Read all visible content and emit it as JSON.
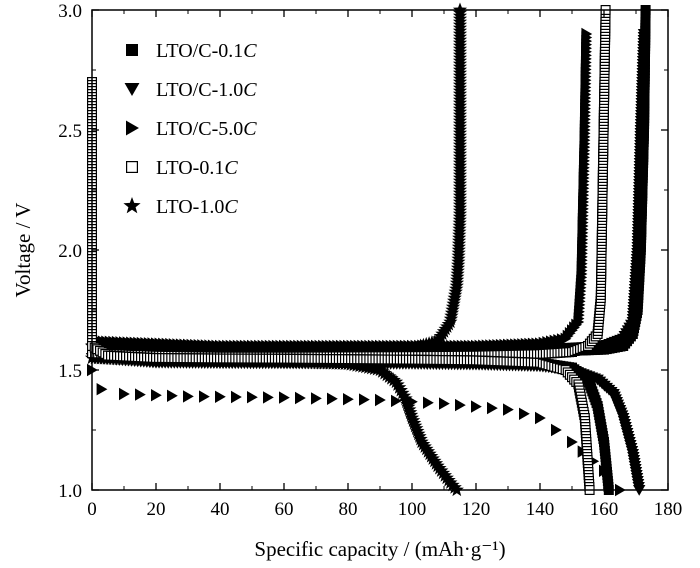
{
  "chart_data": {
    "type": "scatter",
    "title": "",
    "xlabel": "Specific capacity /  (mAh·g⁻¹)",
    "ylabel": "Voltage / V",
    "xlim": [
      0,
      180
    ],
    "ylim": [
      1.0,
      3.0
    ],
    "x_ticks": [
      "0",
      "20",
      "40",
      "60",
      "80",
      "100",
      "120",
      "140",
      "160",
      "180"
    ],
    "y_ticks": [
      "1.0",
      "1.5",
      "2.0",
      "2.5",
      "3.0"
    ],
    "grid": false,
    "legend_position": "top-left",
    "series": [
      {
        "name": "LTO/C-0.1C",
        "name_main": "LTO/C-0.1",
        "name_suffix": "C",
        "marker": "square-filled",
        "charge": [
          [
            0,
            1.58
          ],
          [
            20,
            1.57
          ],
          [
            40,
            1.565
          ],
          [
            60,
            1.566
          ],
          [
            80,
            1.567
          ],
          [
            100,
            1.568
          ],
          [
            120,
            1.57
          ],
          [
            140,
            1.575
          ],
          [
            160,
            1.585
          ],
          [
            166,
            1.6
          ],
          [
            169,
            1.65
          ],
          [
            170.5,
            1.75
          ],
          [
            171.5,
            2.0
          ],
          [
            172.5,
            2.5
          ],
          [
            173,
            3.0
          ]
        ],
        "discharge": [
          [
            0,
            1.62
          ],
          [
            20,
            1.545
          ],
          [
            40,
            1.54
          ],
          [
            60,
            1.539
          ],
          [
            80,
            1.538
          ],
          [
            100,
            1.537
          ],
          [
            120,
            1.536
          ],
          [
            140,
            1.53
          ],
          [
            150,
            1.51
          ],
          [
            155,
            1.46
          ],
          [
            158,
            1.35
          ],
          [
            160,
            1.2
          ],
          [
            161.5,
            1.0
          ]
        ]
      },
      {
        "name": "LTO/C-1.0C",
        "name_main": "LTO/C-1.0",
        "name_suffix": "C",
        "marker": "triangle-down",
        "charge": [
          [
            0,
            1.59
          ],
          [
            20,
            1.58
          ],
          [
            40,
            1.575
          ],
          [
            60,
            1.575
          ],
          [
            80,
            1.576
          ],
          [
            100,
            1.578
          ],
          [
            120,
            1.58
          ],
          [
            140,
            1.585
          ],
          [
            160,
            1.6
          ],
          [
            166,
            1.63
          ],
          [
            169,
            1.7
          ],
          [
            170.5,
            2.0
          ],
          [
            171.5,
            2.5
          ],
          [
            172.5,
            2.9
          ]
        ],
        "discharge": [
          [
            0,
            1.55
          ],
          [
            20,
            1.53
          ],
          [
            40,
            1.528
          ],
          [
            60,
            1.527
          ],
          [
            80,
            1.526
          ],
          [
            100,
            1.525
          ],
          [
            120,
            1.522
          ],
          [
            140,
            1.515
          ],
          [
            150,
            1.5
          ],
          [
            158,
            1.46
          ],
          [
            163,
            1.4
          ],
          [
            166,
            1.3
          ],
          [
            169,
            1.15
          ],
          [
            171,
            1.0
          ]
        ]
      },
      {
        "name": "LTO/C-5.0C",
        "name_main": "LTO/C-5.0",
        "name_suffix": "C",
        "marker": "triangle-right",
        "charge": [
          [
            0,
            1.62
          ],
          [
            20,
            1.61
          ],
          [
            40,
            1.6
          ],
          [
            60,
            1.6
          ],
          [
            80,
            1.6
          ],
          [
            100,
            1.6
          ],
          [
            120,
            1.6
          ],
          [
            140,
            1.61
          ],
          [
            148,
            1.63
          ],
          [
            152,
            1.7
          ],
          [
            153,
            1.9
          ],
          [
            153.5,
            2.2
          ],
          [
            154,
            2.5
          ],
          [
            154.5,
            2.9
          ]
        ],
        "discharge": [
          [
            0,
            1.5
          ],
          [
            3,
            1.42
          ],
          [
            10,
            1.4
          ],
          [
            30,
            1.39
          ],
          [
            60,
            1.385
          ],
          [
            90,
            1.375
          ],
          [
            110,
            1.36
          ],
          [
            130,
            1.335
          ],
          [
            140,
            1.3
          ],
          [
            150,
            1.2
          ],
          [
            160,
            1.08
          ],
          [
            165,
            1.0
          ]
        ]
      },
      {
        "name": "LTO-0.1C",
        "name_main": "LTO-0.1",
        "name_suffix": "C",
        "marker": "square-open",
        "charge": [
          [
            0,
            1.57
          ],
          [
            20,
            1.56
          ],
          [
            40,
            1.556
          ],
          [
            60,
            1.556
          ],
          [
            80,
            1.557
          ],
          [
            100,
            1.558
          ],
          [
            120,
            1.56
          ],
          [
            140,
            1.566
          ],
          [
            150,
            1.575
          ],
          [
            155,
            1.6
          ],
          [
            158,
            1.65
          ],
          [
            159,
            1.8
          ],
          [
            159.5,
            2.2
          ],
          [
            160,
            2.6
          ],
          [
            160.5,
            3.0
          ]
        ],
        "discharge": [
          [
            0,
            2.7
          ],
          [
            0,
            2.2
          ],
          [
            0,
            1.8
          ],
          [
            0,
            1.6
          ],
          [
            5,
            1.56
          ],
          [
            20,
            1.55
          ],
          [
            40,
            1.548
          ],
          [
            60,
            1.547
          ],
          [
            80,
            1.545
          ],
          [
            100,
            1.543
          ],
          [
            120,
            1.54
          ],
          [
            140,
            1.53
          ],
          [
            148,
            1.5
          ],
          [
            152,
            1.44
          ],
          [
            154,
            1.3
          ],
          [
            155,
            1.1
          ],
          [
            155.5,
            1.0
          ]
        ]
      },
      {
        "name": "LTO-1.0C",
        "name_main": "LTO-1.0",
        "name_suffix": "C",
        "marker": "star",
        "charge": [
          [
            0,
            1.6
          ],
          [
            20,
            1.59
          ],
          [
            40,
            1.585
          ],
          [
            60,
            1.585
          ],
          [
            80,
            1.586
          ],
          [
            100,
            1.59
          ],
          [
            108,
            1.62
          ],
          [
            112,
            1.7
          ],
          [
            114,
            1.85
          ],
          [
            114.5,
            1.95
          ],
          [
            115,
            2.15
          ],
          [
            115,
            2.45
          ],
          [
            115,
            3.0
          ]
        ],
        "discharge": [
          [
            0,
            1.55
          ],
          [
            20,
            1.54
          ],
          [
            40,
            1.538
          ],
          [
            60,
            1.535
          ],
          [
            80,
            1.525
          ],
          [
            90,
            1.5
          ],
          [
            95,
            1.45
          ],
          [
            98,
            1.38
          ],
          [
            100,
            1.3
          ],
          [
            103,
            1.2
          ],
          [
            108,
            1.1
          ],
          [
            112,
            1.03
          ],
          [
            114,
            1.0
          ]
        ]
      }
    ]
  }
}
